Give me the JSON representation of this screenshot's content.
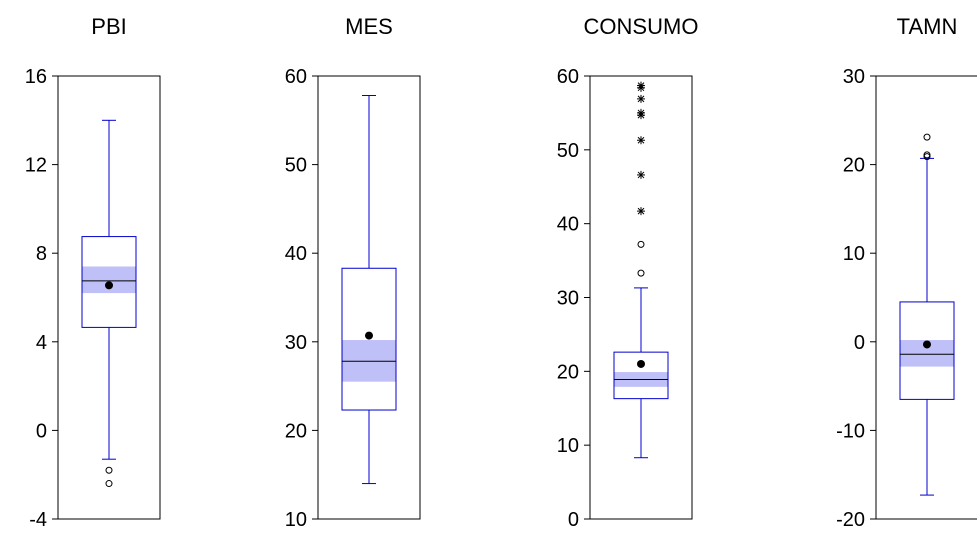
{
  "chart_data": [
    {
      "type": "box",
      "title": "PBI",
      "ylim": [
        -4,
        16
      ],
      "yticks": [
        -4,
        0,
        4,
        8,
        12,
        16
      ],
      "ytick_labels": [
        "-4",
        "0",
        "4",
        "8",
        "12",
        "16"
      ],
      "whisker_low": -1.3,
      "q1": 4.65,
      "median": 6.75,
      "q3": 8.75,
      "whisker_high": 14.0,
      "mean": 6.55,
      "median_ci": [
        6.2,
        7.4
      ],
      "outliers": [
        -1.8,
        -2.4
      ],
      "far_outliers": []
    },
    {
      "type": "box",
      "title": "MES",
      "ylim": [
        10,
        60
      ],
      "yticks": [
        10,
        20,
        30,
        40,
        50,
        60
      ],
      "ytick_labels": [
        "10",
        "20",
        "30",
        "40",
        "50",
        "60"
      ],
      "whisker_low": 14.0,
      "q1": 22.3,
      "median": 27.8,
      "q3": 38.3,
      "whisker_high": 57.8,
      "mean": 30.7,
      "median_ci": [
        25.5,
        30.2
      ],
      "outliers": [],
      "far_outliers": []
    },
    {
      "type": "box",
      "title": "CONSUMO",
      "ylim": [
        0,
        60
      ],
      "yticks": [
        0,
        10,
        20,
        30,
        40,
        50,
        60
      ],
      "ytick_labels": [
        "0",
        "10",
        "20",
        "30",
        "40",
        "50",
        "60"
      ],
      "whisker_low": 8.3,
      "q1": 16.3,
      "median": 18.9,
      "q3": 22.6,
      "whisker_high": 31.3,
      "mean": 21.0,
      "median_ci": [
        17.9,
        19.9
      ],
      "outliers": [
        33.3,
        37.2
      ],
      "far_outliers": [
        41.7,
        46.6,
        51.3,
        54.7,
        55.0,
        56.9,
        58.4,
        58.7
      ]
    },
    {
      "type": "box",
      "title": "TAMN",
      "ylim": [
        -20,
        30
      ],
      "yticks": [
        -20,
        -10,
        0,
        10,
        20,
        30
      ],
      "ytick_labels": [
        "-20",
        "-10",
        "0",
        "10",
        "20",
        "30"
      ],
      "whisker_low": -17.3,
      "q1": -6.5,
      "median": -1.4,
      "q3": 4.5,
      "whisker_high": 20.7,
      "mean": -0.3,
      "median_ci": [
        -2.8,
        0.2
      ],
      "outliers": [
        20.9,
        21.1,
        23.1
      ],
      "far_outliers": []
    }
  ],
  "colors": {
    "box": "#0000cc",
    "median_ci_band": "#c0c0f8",
    "median": "#000000",
    "mean": "#000000",
    "frame": "#000000",
    "background": "#ffffff"
  }
}
